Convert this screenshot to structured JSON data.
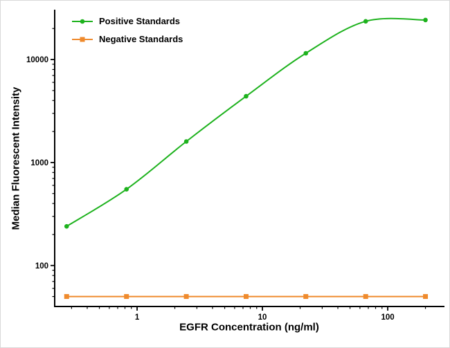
{
  "chart_data": {
    "type": "line",
    "title": "",
    "xlabel": "EGFR Concentration (ng/ml)",
    "ylabel": "Median Fluorescent Intensity",
    "x_scale": "log",
    "y_scale": "log",
    "xlim": [
      0.22,
      280
    ],
    "ylim": [
      40,
      30000
    ],
    "x_ticks": [
      1,
      10,
      100
    ],
    "y_ticks": [
      100,
      1000,
      10000
    ],
    "grid": false,
    "legend_position": "top-left-inside",
    "axis_color": "#000000",
    "series": [
      {
        "name": "Positive Standards",
        "color": "#1db21d",
        "marker": "circle",
        "x": [
          0.274,
          0.823,
          2.47,
          7.41,
          22.2,
          66.7,
          200
        ],
        "y": [
          240,
          550,
          1600,
          4400,
          11500,
          23500,
          24200
        ]
      },
      {
        "name": "Negative Standards",
        "color": "#ef8a2c",
        "marker": "square",
        "x": [
          0.274,
          0.823,
          2.47,
          7.41,
          22.2,
          66.7,
          200
        ],
        "y": [
          50,
          50,
          50,
          50,
          50,
          50,
          50
        ]
      }
    ]
  }
}
